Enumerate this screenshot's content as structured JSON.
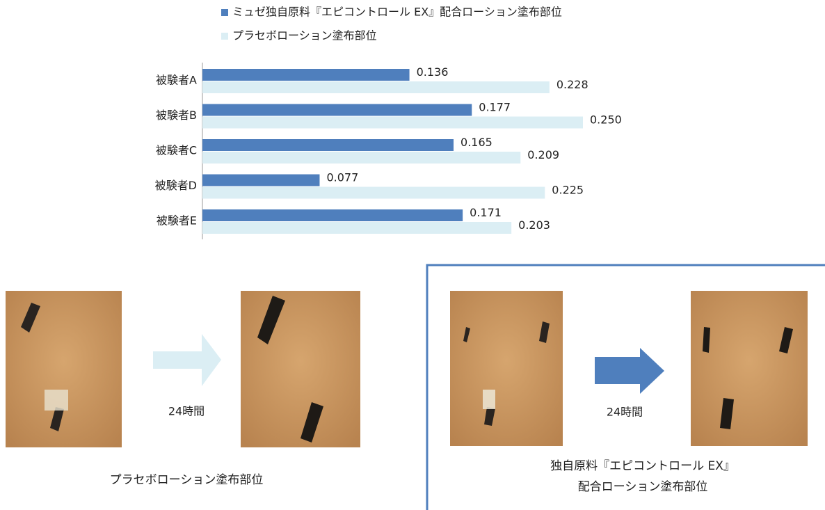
{
  "chart_data": {
    "type": "bar",
    "orientation": "horizontal",
    "categories": [
      "被験者A",
      "被験者B",
      "被験者C",
      "被験者D",
      "被験者E"
    ],
    "series": [
      {
        "name": "ミュゼ独自原料『エピコントロール EX』配合ローション塗布部位",
        "color": "#4f7fbd",
        "values": [
          0.136,
          0.177,
          0.165,
          0.077,
          0.171
        ],
        "value_labels": [
          "0.136",
          "0.177",
          "0.165",
          "0.077",
          "0.171"
        ]
      },
      {
        "name": "プラセボローション塗布部位",
        "color": "#dbeef4",
        "values": [
          0.228,
          0.25,
          0.209,
          0.225,
          0.203
        ],
        "value_labels": [
          "0.228",
          "0.250",
          "0.209",
          "0.225",
          "0.203"
        ]
      }
    ]
  },
  "panels": [
    {
      "duration": "24時間",
      "caption": [
        "プラセボローション塗布部位"
      ]
    },
    {
      "duration": "24時間",
      "caption": [
        "独自原料『エピコントロール EX』",
        "配合ローション塗布部位"
      ]
    }
  ]
}
